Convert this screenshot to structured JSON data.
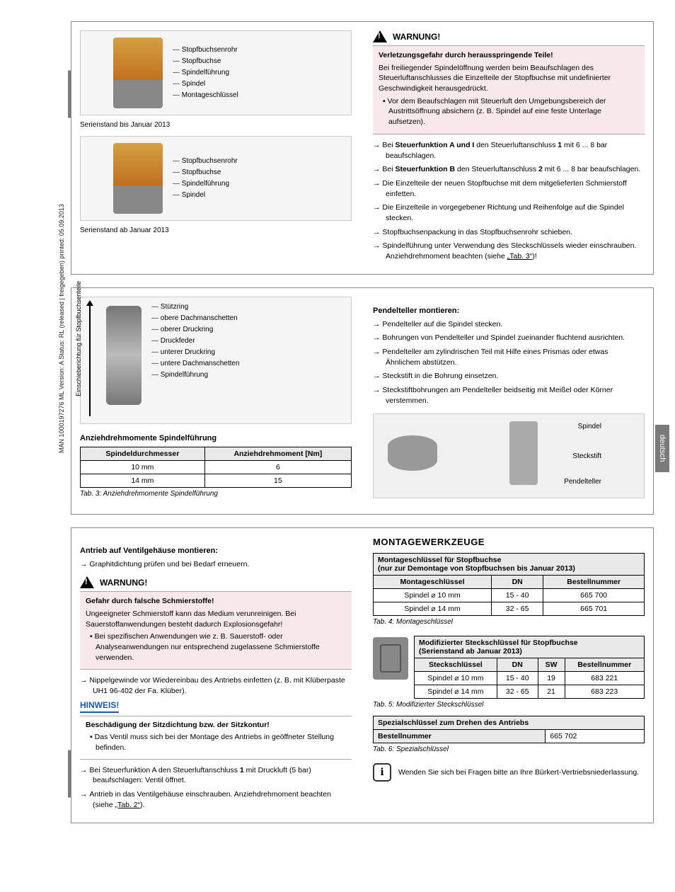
{
  "meta": {
    "side_text": "MAN 1000197276 ML Version: A Status: RL (released | freigegeben) printed: 05.09.2013",
    "lang_tab": "deutsch"
  },
  "fig1": {
    "caption1": "Serienstand bis Januar 2013",
    "caption2": "Serienstand ab Januar 2013",
    "labels": [
      "Stopfbuchsenrohr",
      "Stopfbuchse",
      "Spindelführung",
      "Spindel",
      "Montageschlüssel"
    ],
    "labels2": [
      "Stopfbuchsenrohr",
      "Stopfbuchse",
      "Spindelführung",
      "Spindel"
    ]
  },
  "warn1": {
    "head": "WARNUNG!",
    "title": "Verletzungsgefahr durch herausspringende Teile!",
    "body": "Bei freiliegender Spindelöffnung werden beim Beaufschlagen des Steuerluftanschlusses die Einzelteile der Stopfbuchse mit undefinierter Geschwindigkeit herausgedrückt.",
    "bullet": "Vor dem Beaufschlagen mit Steuerluft den Umgebungsbereich der Austrittsöffnung absichern (z. B. Spindel auf eine feste Unterlage aufsetzen)."
  },
  "steps1": [
    "Bei <b>Steuerfunktion A und I</b> den Steuerluftanschluss <b>1</b> mit 6 ... 8 bar beaufschlagen.",
    "Bei <b>Steuerfunktion B</b> den Steuerluftanschluss <b>2</b> mit 6 ... 8 bar beaufschlagen.",
    "Die Einzelteile der neuen Stopfbuchse mit dem mitgelieferten Schmierstoff einfetten.",
    "Die Einzelteile in vorgegebener Richtung und Reihenfolge auf die Spindel stecken.",
    "Stopfbuchsenpackung in das Stopfbuchsenrohr schieben.",
    "Spindelführung unter Verwendung des Steckschlüssels wieder einschrauben. Anziehdrehmoment beachten (siehe <span class='link'>„Tab. 3“</span>)!"
  ],
  "fig2": {
    "vlabel": "Einschieberichtung für Stopfbuchsenteile",
    "labels": [
      "Stützring",
      "obere Dachmanschetten",
      "oberer Druckring",
      "Druckfeder",
      "unterer Druckring",
      "untere Dachmanschetten",
      "Spindelführung"
    ]
  },
  "tab3": {
    "title": "Anziehdrehmomente Spindelführung",
    "headers": [
      "Spindeldurchmesser",
      "Anziehdrehmoment [Nm]"
    ],
    "rows": [
      [
        "10 mm",
        "6"
      ],
      [
        "14 mm",
        "15"
      ]
    ],
    "caption": "Tab. 3:    Anziehdrehmomente Spindelführung"
  },
  "pendel": {
    "title": "Pendelteller montieren:",
    "steps": [
      "Pendelteller auf die Spindel stecken.",
      "Bohrungen von Pendelteller und Spindel zueinander fluchtend ausrichten.",
      "Pendelteller am zylindrischen Teil mit Hilfe eines Prismas oder etwas Ähnlichem abstützen.",
      "Steckstift in die Bohrung einsetzen.",
      "Steckstiftbohrungen am Pendelteller beidseitig mit Meißel oder Körner verstemmen."
    ],
    "fig_labels": [
      "Spindel",
      "Steckstift",
      "Pendelteller"
    ]
  },
  "antrieb": {
    "title": "Antrieb auf Ventilgehäuse montieren:",
    "step1": "Graphitdichtung prüfen und bei Bedarf erneuern."
  },
  "warn2": {
    "head": "WARNUNG!",
    "title": "Gefahr durch falsche Schmierstoffe!",
    "body": "Ungeeigneter Schmierstoff kann das Medium verunreinigen. Bei Sauerstoffanwendungen besteht dadurch Explosionsgefahr!",
    "bullet": "Bei spezifischen Anwendungen wie z. B. Sauerstoff- oder Analyseanwendungen nur entsprechend zugelassene Schmierstoffe verwenden."
  },
  "antrieb_steps": [
    "Nippelgewinde vor Wiedereinbau des Antriebs einfetten (z. B. mit Klüberpaste UH1 96-402 der Fa. Klüber)."
  ],
  "hinweis": {
    "head": "HINWEIS!",
    "title": "Beschädigung der Sitzdichtung bzw. der Sitzkontur!",
    "bullet": "Das Ventil muss sich bei der Montage des Antriebs in geöffneter Stellung befinden."
  },
  "antrieb_steps2": [
    "Bei Steuerfunktion A den Steuerluftanschluss <b>1</b> mit Druckluft (5 bar) beaufschlagen: Ventil öffnet.",
    "Antrieb in das Ventilgehäuse einschrauben. Anziehdrehmoment beachten (siehe <span class='link'>„Tab. 2“</span>)."
  ],
  "tools": {
    "title": "MONTAGEWERKZEUGE"
  },
  "tab4": {
    "head1": "Montageschlüssel für Stopfbuchse",
    "head2": "(nur zur Demontage von Stopfbuchsen bis Januar 2013)",
    "headers": [
      "Montageschlüssel",
      "DN",
      "Bestellnummer"
    ],
    "rows": [
      [
        "Spindel ⌀ 10 mm",
        "15 - 40",
        "665 700"
      ],
      [
        "Spindel ⌀ 14 mm",
        "32 - 65",
        "665 701"
      ]
    ],
    "caption": "Tab. 4:    Montageschlüssel"
  },
  "tab5": {
    "head1": "Modifizierter Steckschlüssel für Stopfbuchse",
    "head2": "(Serienstand ab Januar 2013)",
    "headers": [
      "Steckschlüssel",
      "DN",
      "SW",
      "Bestellnummer"
    ],
    "rows": [
      [
        "Spindel ⌀ 10 mm",
        "15 - 40",
        "19",
        "683 221"
      ],
      [
        "Spindel ⌀ 14 mm",
        "32 - 65",
        "21",
        "683 223"
      ]
    ],
    "caption": "Tab. 5:    Modifizierter Steckschlüssel"
  },
  "tab6": {
    "head": "Spezialschlüssel zum Drehen des Antriebs",
    "row": [
      "Bestellnummer",
      "665 702"
    ],
    "caption": "Tab. 6:    Spezialschlüssel"
  },
  "contact": "Wenden Sie sich bei Fragen bitte an Ihre Bürkert-Vertriebsniederlassung."
}
